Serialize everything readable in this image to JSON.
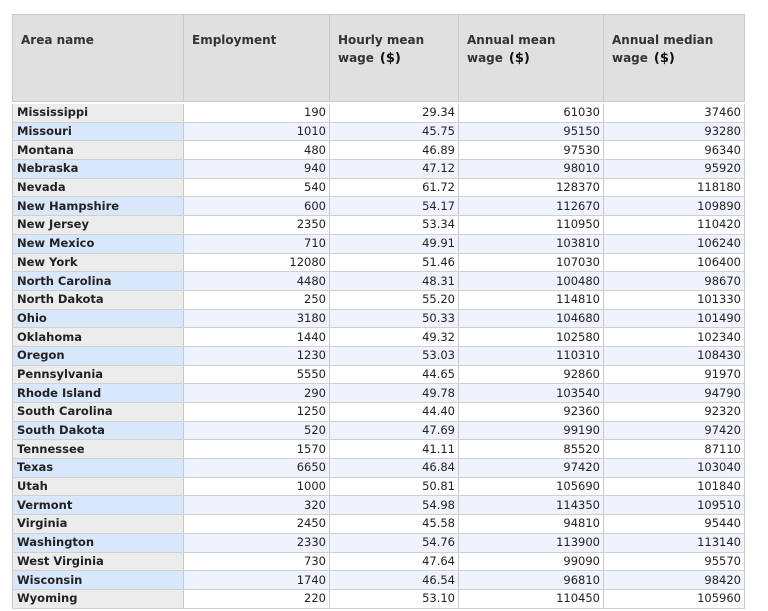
{
  "table": {
    "headers": [
      {
        "label": "Area name",
        "unit": ""
      },
      {
        "label": "Employment",
        "unit": ""
      },
      {
        "label": "Hourly mean wage",
        "unit": "($)"
      },
      {
        "label": "Annual mean wage",
        "unit": "($)"
      },
      {
        "label": "Annual median wage",
        "unit": "($)"
      }
    ],
    "rows": [
      [
        "Mississippi",
        "190",
        "29.34",
        "61030",
        "37460"
      ],
      [
        "Missouri",
        "1010",
        "45.75",
        "95150",
        "93280"
      ],
      [
        "Montana",
        "480",
        "46.89",
        "97530",
        "96340"
      ],
      [
        "Nebraska",
        "940",
        "47.12",
        "98010",
        "95920"
      ],
      [
        "Nevada",
        "540",
        "61.72",
        "128370",
        "118180"
      ],
      [
        "New Hampshire",
        "600",
        "54.17",
        "112670",
        "109890"
      ],
      [
        "New Jersey",
        "2350",
        "53.34",
        "110950",
        "110420"
      ],
      [
        "New Mexico",
        "710",
        "49.91",
        "103810",
        "106240"
      ],
      [
        "New York",
        "12080",
        "51.46",
        "107030",
        "106400"
      ],
      [
        "North Carolina",
        "4480",
        "48.31",
        "100480",
        "98670"
      ],
      [
        "North Dakota",
        "250",
        "55.20",
        "114810",
        "101330"
      ],
      [
        "Ohio",
        "3180",
        "50.33",
        "104680",
        "101490"
      ],
      [
        "Oklahoma",
        "1440",
        "49.32",
        "102580",
        "102340"
      ],
      [
        "Oregon",
        "1230",
        "53.03",
        "110310",
        "108430"
      ],
      [
        "Pennsylvania",
        "5550",
        "44.65",
        "92860",
        "91970"
      ],
      [
        "Rhode Island",
        "290",
        "49.78",
        "103540",
        "94790"
      ],
      [
        "South Carolina",
        "1250",
        "44.40",
        "92360",
        "92320"
      ],
      [
        "South Dakota",
        "520",
        "47.69",
        "99190",
        "97420"
      ],
      [
        "Tennessee",
        "1570",
        "41.11",
        "85520",
        "87110"
      ],
      [
        "Texas",
        "6650",
        "46.84",
        "97420",
        "103040"
      ],
      [
        "Utah",
        "1000",
        "50.81",
        "105690",
        "101840"
      ],
      [
        "Vermont",
        "320",
        "54.98",
        "114350",
        "109510"
      ],
      [
        "Virginia",
        "2450",
        "45.58",
        "94810",
        "95440"
      ],
      [
        "Washington",
        "2330",
        "54.76",
        "113900",
        "113140"
      ],
      [
        "West Virginia",
        "730",
        "47.64",
        "99090",
        "95570"
      ],
      [
        "Wisconsin",
        "1740",
        "46.54",
        "96810",
        "98420"
      ],
      [
        "Wyoming",
        "220",
        "53.10",
        "110450",
        "105960"
      ]
    ]
  }
}
